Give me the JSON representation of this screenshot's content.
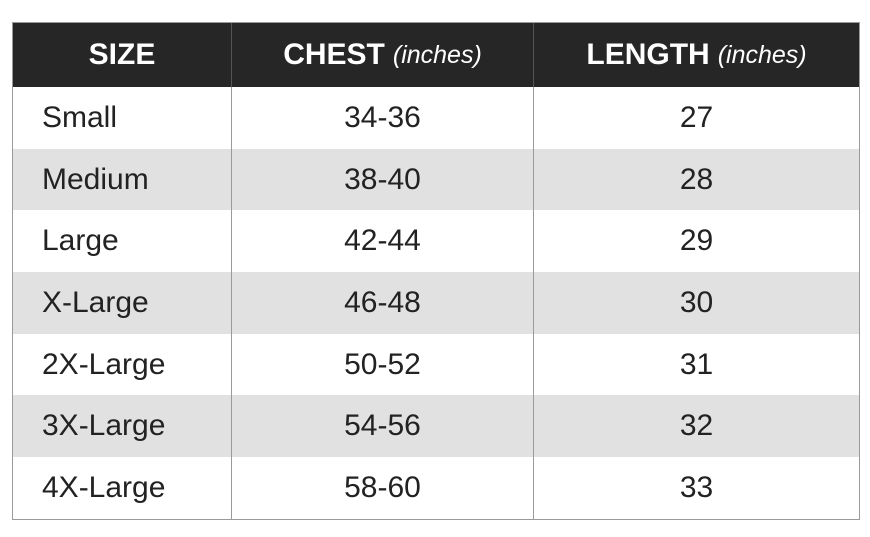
{
  "table": {
    "header": [
      {
        "text": "SIZE"
      },
      {
        "text": "CHEST",
        "unit": "(inches)"
      },
      {
        "text": "LENGTH",
        "unit": "(inches)"
      }
    ],
    "rows": [
      [
        "Small",
        "34-36",
        "27"
      ],
      [
        "Medium",
        "38-40",
        "28"
      ],
      [
        "Large",
        "42-44",
        "29"
      ],
      [
        "X-Large",
        "46-48",
        "30"
      ],
      [
        "2X-Large",
        "50-52",
        "31"
      ],
      [
        "3X-Large",
        "54-56",
        "32"
      ],
      [
        "4X-Large",
        "58-60",
        "33"
      ]
    ]
  }
}
